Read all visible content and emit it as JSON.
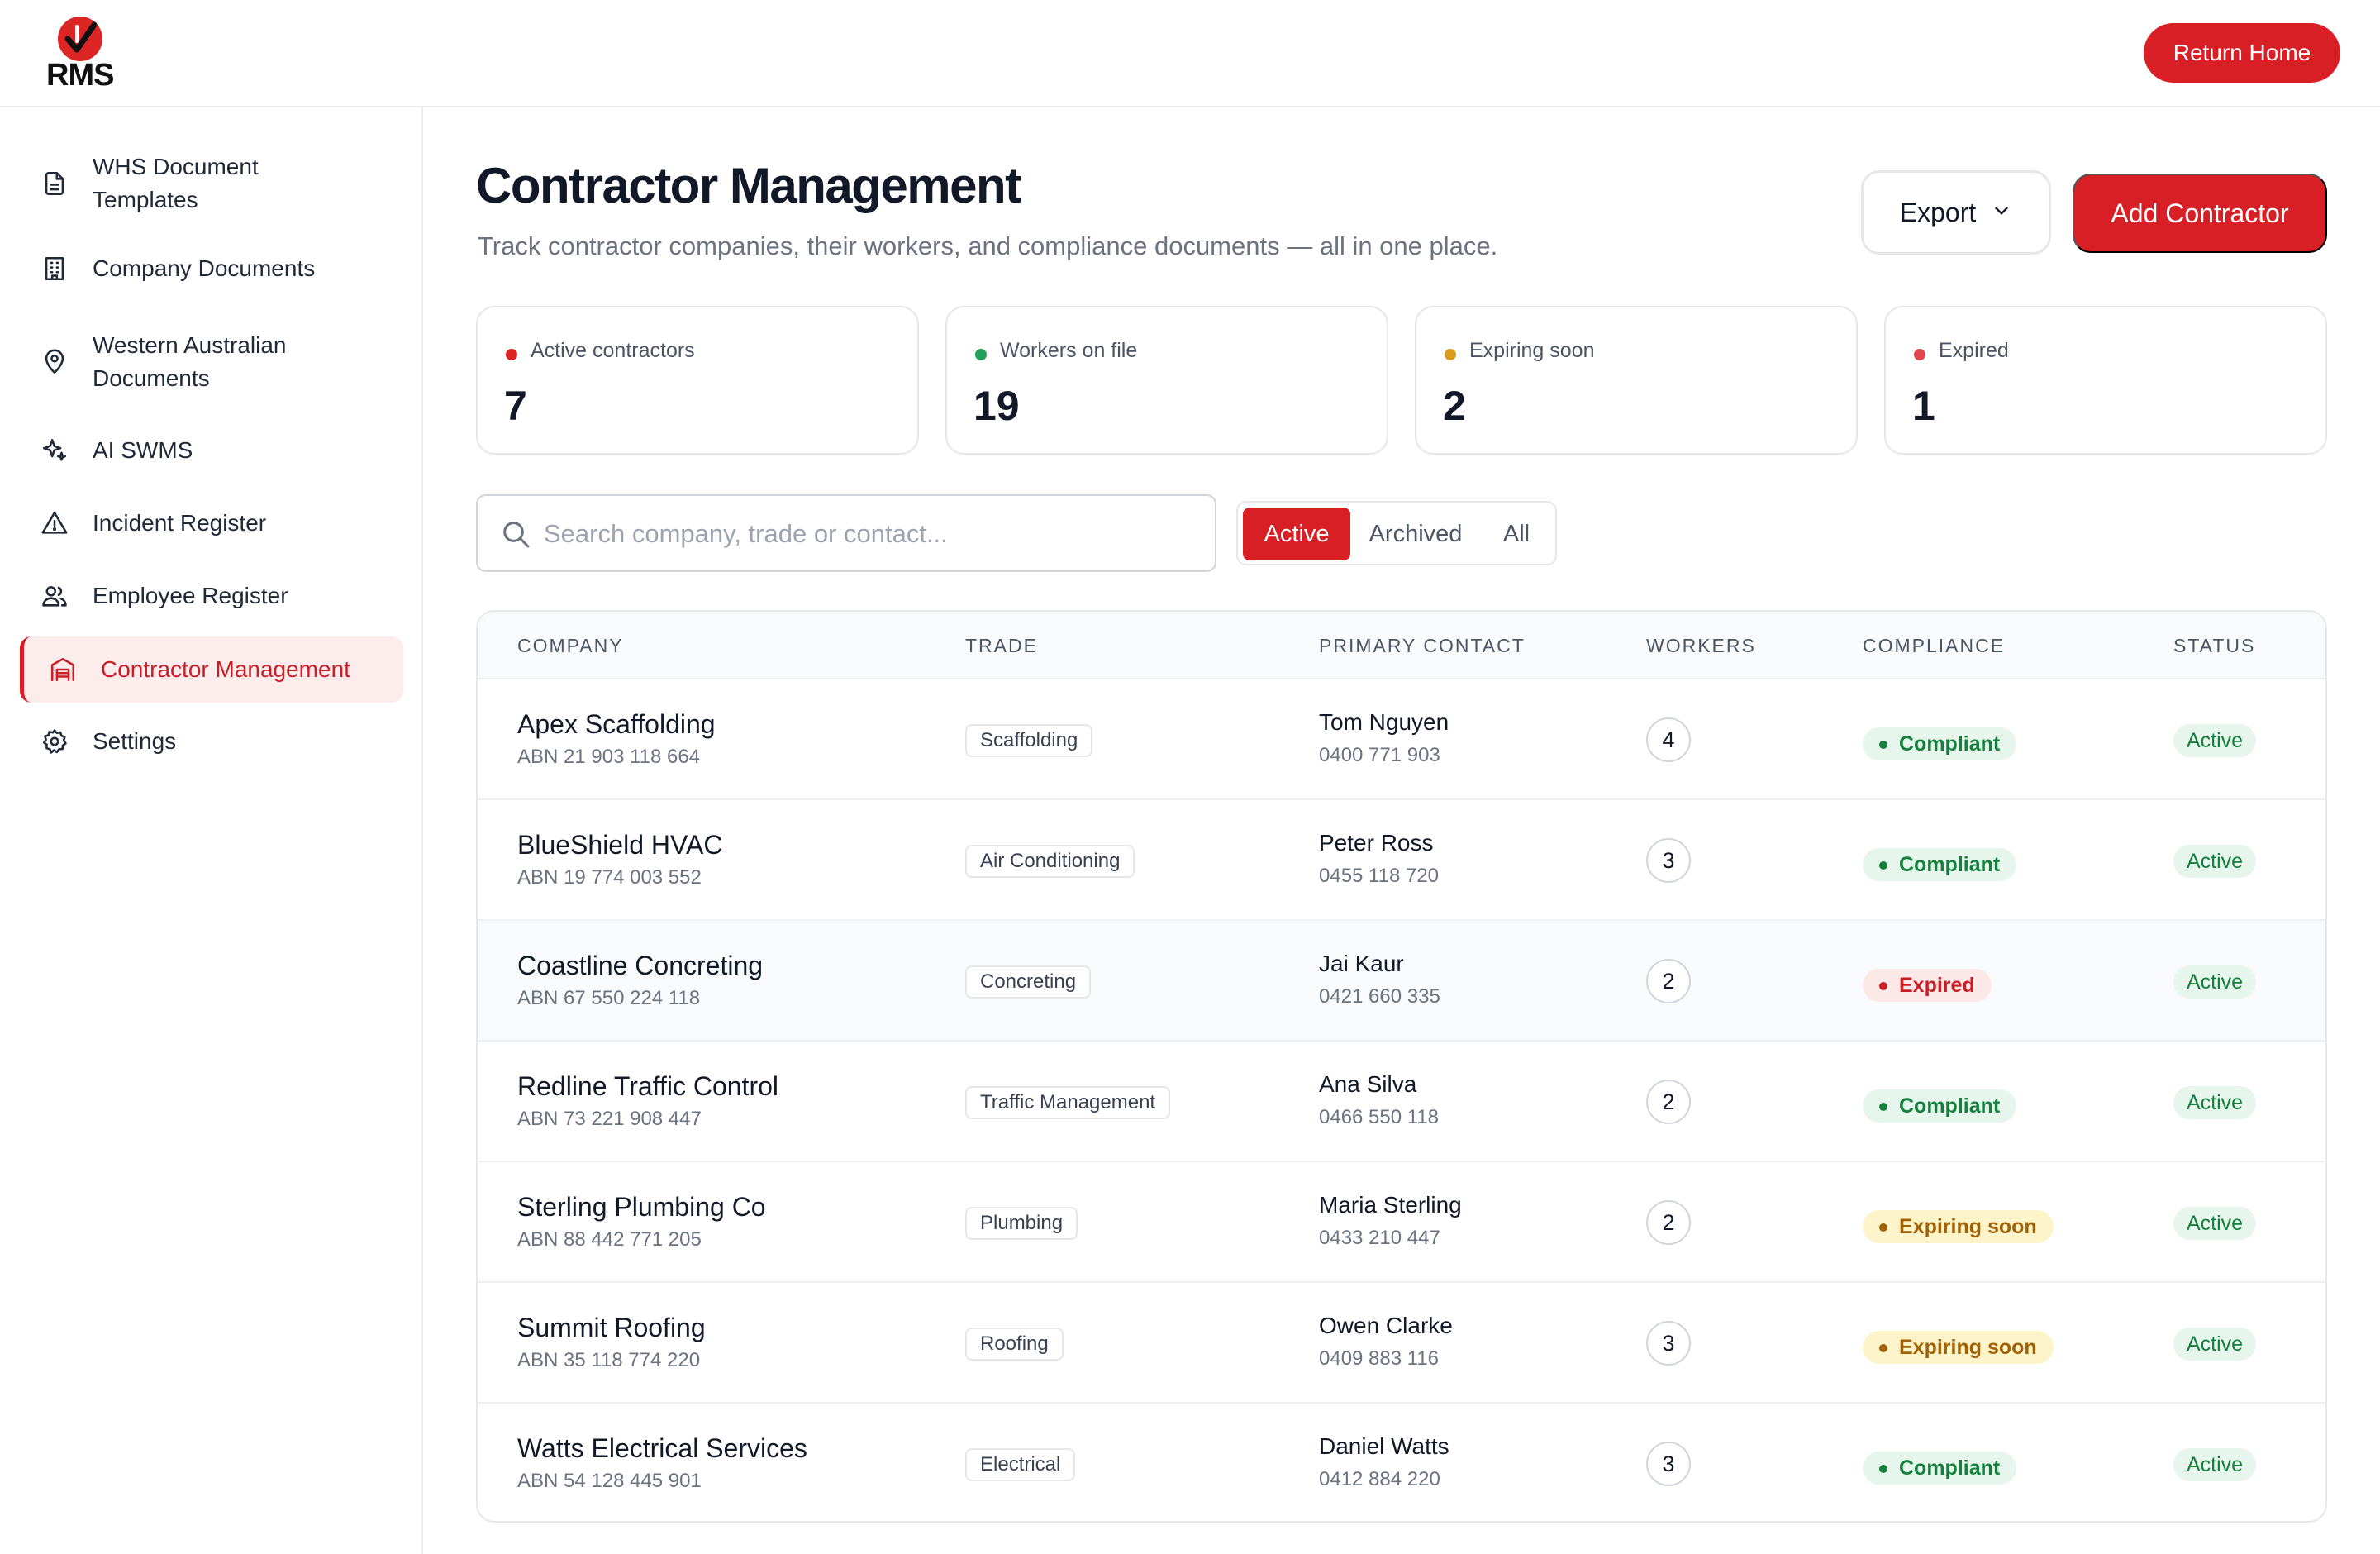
{
  "brand": {
    "logo_text": "RMS",
    "accent": "#d81f26"
  },
  "header": {
    "return_label": "Return Home"
  },
  "sidebar": {
    "items": [
      {
        "label": "WHS Document Templates",
        "icon": "document-icon"
      },
      {
        "label": "Company Documents",
        "icon": "building-icon"
      },
      {
        "label": "Western Australian Documents",
        "icon": "map-pin-icon"
      },
      {
        "label": "AI SWMS",
        "icon": "sparkles-icon"
      },
      {
        "label": "Incident Register",
        "icon": "warning-icon"
      },
      {
        "label": "Employee Register",
        "icon": "users-icon"
      },
      {
        "label": "Contractor Management",
        "icon": "warehouse-icon",
        "active": true
      },
      {
        "label": "Settings",
        "icon": "gear-icon"
      }
    ]
  },
  "main": {
    "title": "Contractor Management",
    "subtitle": "Track contractor companies, their workers, and compliance documents — all in one place.",
    "export_label": "Export",
    "add_label": "Add Contractor",
    "stats": [
      {
        "label": "Active contractors",
        "value": "7",
        "color": "#dc2626"
      },
      {
        "label": "Workers on file",
        "value": "19",
        "color": "#22a05a"
      },
      {
        "label": "Expiring soon",
        "value": "2",
        "color": "#d99a1e"
      },
      {
        "label": "Expired",
        "value": "1",
        "color": "#e0474c"
      }
    ],
    "search": {
      "placeholder": "Search company, trade or contact...",
      "value": ""
    },
    "filters": {
      "options": [
        "Active",
        "Archived",
        "All"
      ],
      "selected": "Active"
    },
    "table": {
      "columns": [
        "COMPANY",
        "TRADE",
        "PRIMARY CONTACT",
        "WORKERS",
        "COMPLIANCE",
        "STATUS"
      ],
      "rows": [
        {
          "company": "Apex Scaffolding",
          "abn": "ABN 21 903 118 664",
          "trade": "Scaffolding",
          "contact": "Tom Nguyen",
          "phone": "0400 771 903",
          "workers": "4",
          "compliance": "Compliant",
          "status": "Active"
        },
        {
          "company": "BlueShield HVAC",
          "abn": "ABN 19 774 003 552",
          "trade": "Air Conditioning",
          "contact": "Peter Ross",
          "phone": "0455 118 720",
          "workers": "3",
          "compliance": "Compliant",
          "status": "Active"
        },
        {
          "company": "Coastline Concreting",
          "abn": "ABN 67 550 224 118",
          "trade": "Concreting",
          "contact": "Jai Kaur",
          "phone": "0421 660 335",
          "workers": "2",
          "compliance": "Expired",
          "status": "Active"
        },
        {
          "company": "Redline Traffic Control",
          "abn": "ABN 73 221 908 447",
          "trade": "Traffic Management",
          "contact": "Ana Silva",
          "phone": "0466 550 118",
          "workers": "2",
          "compliance": "Compliant",
          "status": "Active"
        },
        {
          "company": "Sterling Plumbing Co",
          "abn": "ABN 88 442 771 205",
          "trade": "Plumbing",
          "contact": "Maria Sterling",
          "phone": "0433 210 447",
          "workers": "2",
          "compliance": "Expiring soon",
          "status": "Active"
        },
        {
          "company": "Summit Roofing",
          "abn": "ABN 35 118 774 220",
          "trade": "Roofing",
          "contact": "Owen Clarke",
          "phone": "0409 883 116",
          "workers": "3",
          "compliance": "Expiring soon",
          "status": "Active"
        },
        {
          "company": "Watts Electrical Services",
          "abn": "ABN 54 128 445 901",
          "trade": "Electrical",
          "contact": "Daniel Watts",
          "phone": "0412 884 220",
          "workers": "3",
          "compliance": "Compliant",
          "status": "Active"
        }
      ]
    }
  }
}
